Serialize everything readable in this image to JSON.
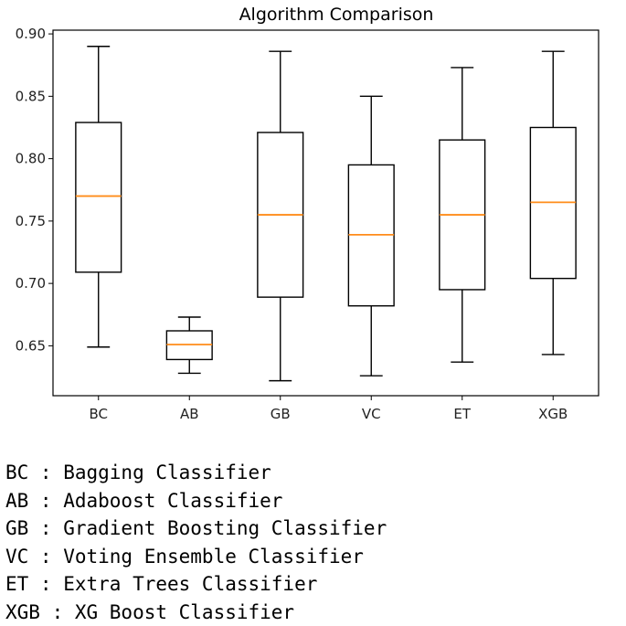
{
  "chart_data": {
    "type": "box",
    "title": "Algorithm Comparison",
    "categories": [
      "BC",
      "AB",
      "GB",
      "VC",
      "ET",
      "XGB"
    ],
    "boxes": [
      {
        "label": "BC",
        "whisker_low": 0.649,
        "q1": 0.709,
        "median": 0.77,
        "q3": 0.829,
        "whisker_high": 0.89
      },
      {
        "label": "AB",
        "whisker_low": 0.628,
        "q1": 0.639,
        "median": 0.651,
        "q3": 0.662,
        "whisker_high": 0.673
      },
      {
        "label": "GB",
        "whisker_low": 0.622,
        "q1": 0.689,
        "median": 0.755,
        "q3": 0.821,
        "whisker_high": 0.886
      },
      {
        "label": "VC",
        "whisker_low": 0.626,
        "q1": 0.682,
        "median": 0.739,
        "q3": 0.795,
        "whisker_high": 0.85
      },
      {
        "label": "ET",
        "whisker_low": 0.637,
        "q1": 0.695,
        "median": 0.755,
        "q3": 0.815,
        "whisker_high": 0.873
      },
      {
        "label": "XGB",
        "whisker_low": 0.643,
        "q1": 0.704,
        "median": 0.765,
        "q3": 0.825,
        "whisker_high": 0.886
      }
    ],
    "ylim": [
      0.61,
      0.903
    ],
    "yticks": [
      "0.65",
      "0.70",
      "0.75",
      "0.80",
      "0.85",
      "0.90"
    ],
    "box_color": "#000000",
    "median_color": "#ff8c1a",
    "grid": false
  },
  "legend": [
    "BC : Bagging Classifier",
    "AB : Adaboost Classifier",
    "GB : Gradient Boosting Classifier",
    "VC : Voting Ensemble Classifier",
    "ET : Extra Trees Classifier",
    "XGB : XG Boost Classifier"
  ]
}
